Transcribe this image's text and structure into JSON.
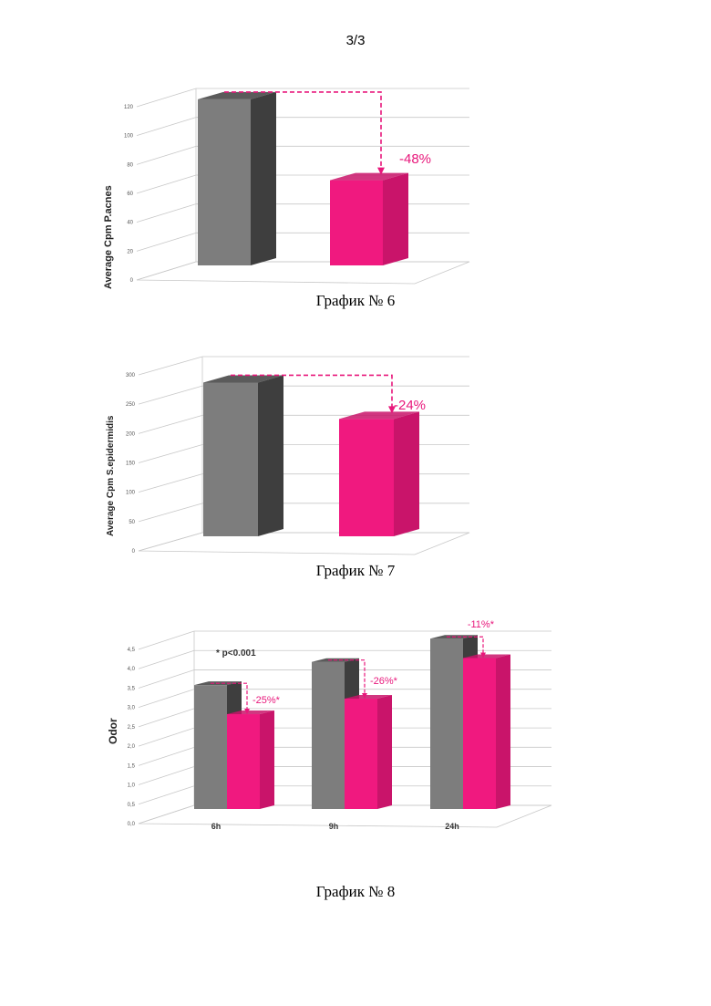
{
  "page_number": "3/3",
  "colors": {
    "control": "#7d7d7d",
    "control_side": "#3e3e3e",
    "treated": "#f0197f",
    "treated_side": "#c9146a",
    "annotation": "#e8177b",
    "grid": "#c8c8c8"
  },
  "chart_data": [
    {
      "type": "bar",
      "caption": "График № 6",
      "ylabel": "Average Cpm  P.acnes",
      "ylim": [
        0,
        120
      ],
      "yticks": [
        "0",
        "20",
        "40",
        "60",
        "80",
        "100",
        "120"
      ],
      "values": [
        115,
        59
      ],
      "annotation": "-48%"
    },
    {
      "type": "bar",
      "caption": "График № 7",
      "ylabel": "Average Cpm S.epidermidis",
      "ylim": [
        0,
        300
      ],
      "yticks": [
        "0",
        "50",
        "100",
        "150",
        "200",
        "250",
        "300"
      ],
      "values": [
        262,
        200
      ],
      "annotation": "-24%"
    },
    {
      "type": "bar",
      "caption": "График № 8",
      "ylabel": "Odor",
      "ylim": [
        0,
        4.5
      ],
      "yticks": [
        "0,0",
        "0,5",
        "1,0",
        "1,5",
        "2,0",
        "2,5",
        "3,0",
        "3,5",
        "4,0",
        "4,5"
      ],
      "categories": [
        "6h",
        "9h",
        "24h"
      ],
      "series": [
        {
          "values": [
            3.2,
            3.8,
            4.4
          ]
        },
        {
          "values": [
            2.45,
            2.85,
            3.9
          ]
        }
      ],
      "annotations": [
        "-25%*",
        "-26%*",
        "-11%*"
      ],
      "note": "* p<0.001"
    }
  ]
}
